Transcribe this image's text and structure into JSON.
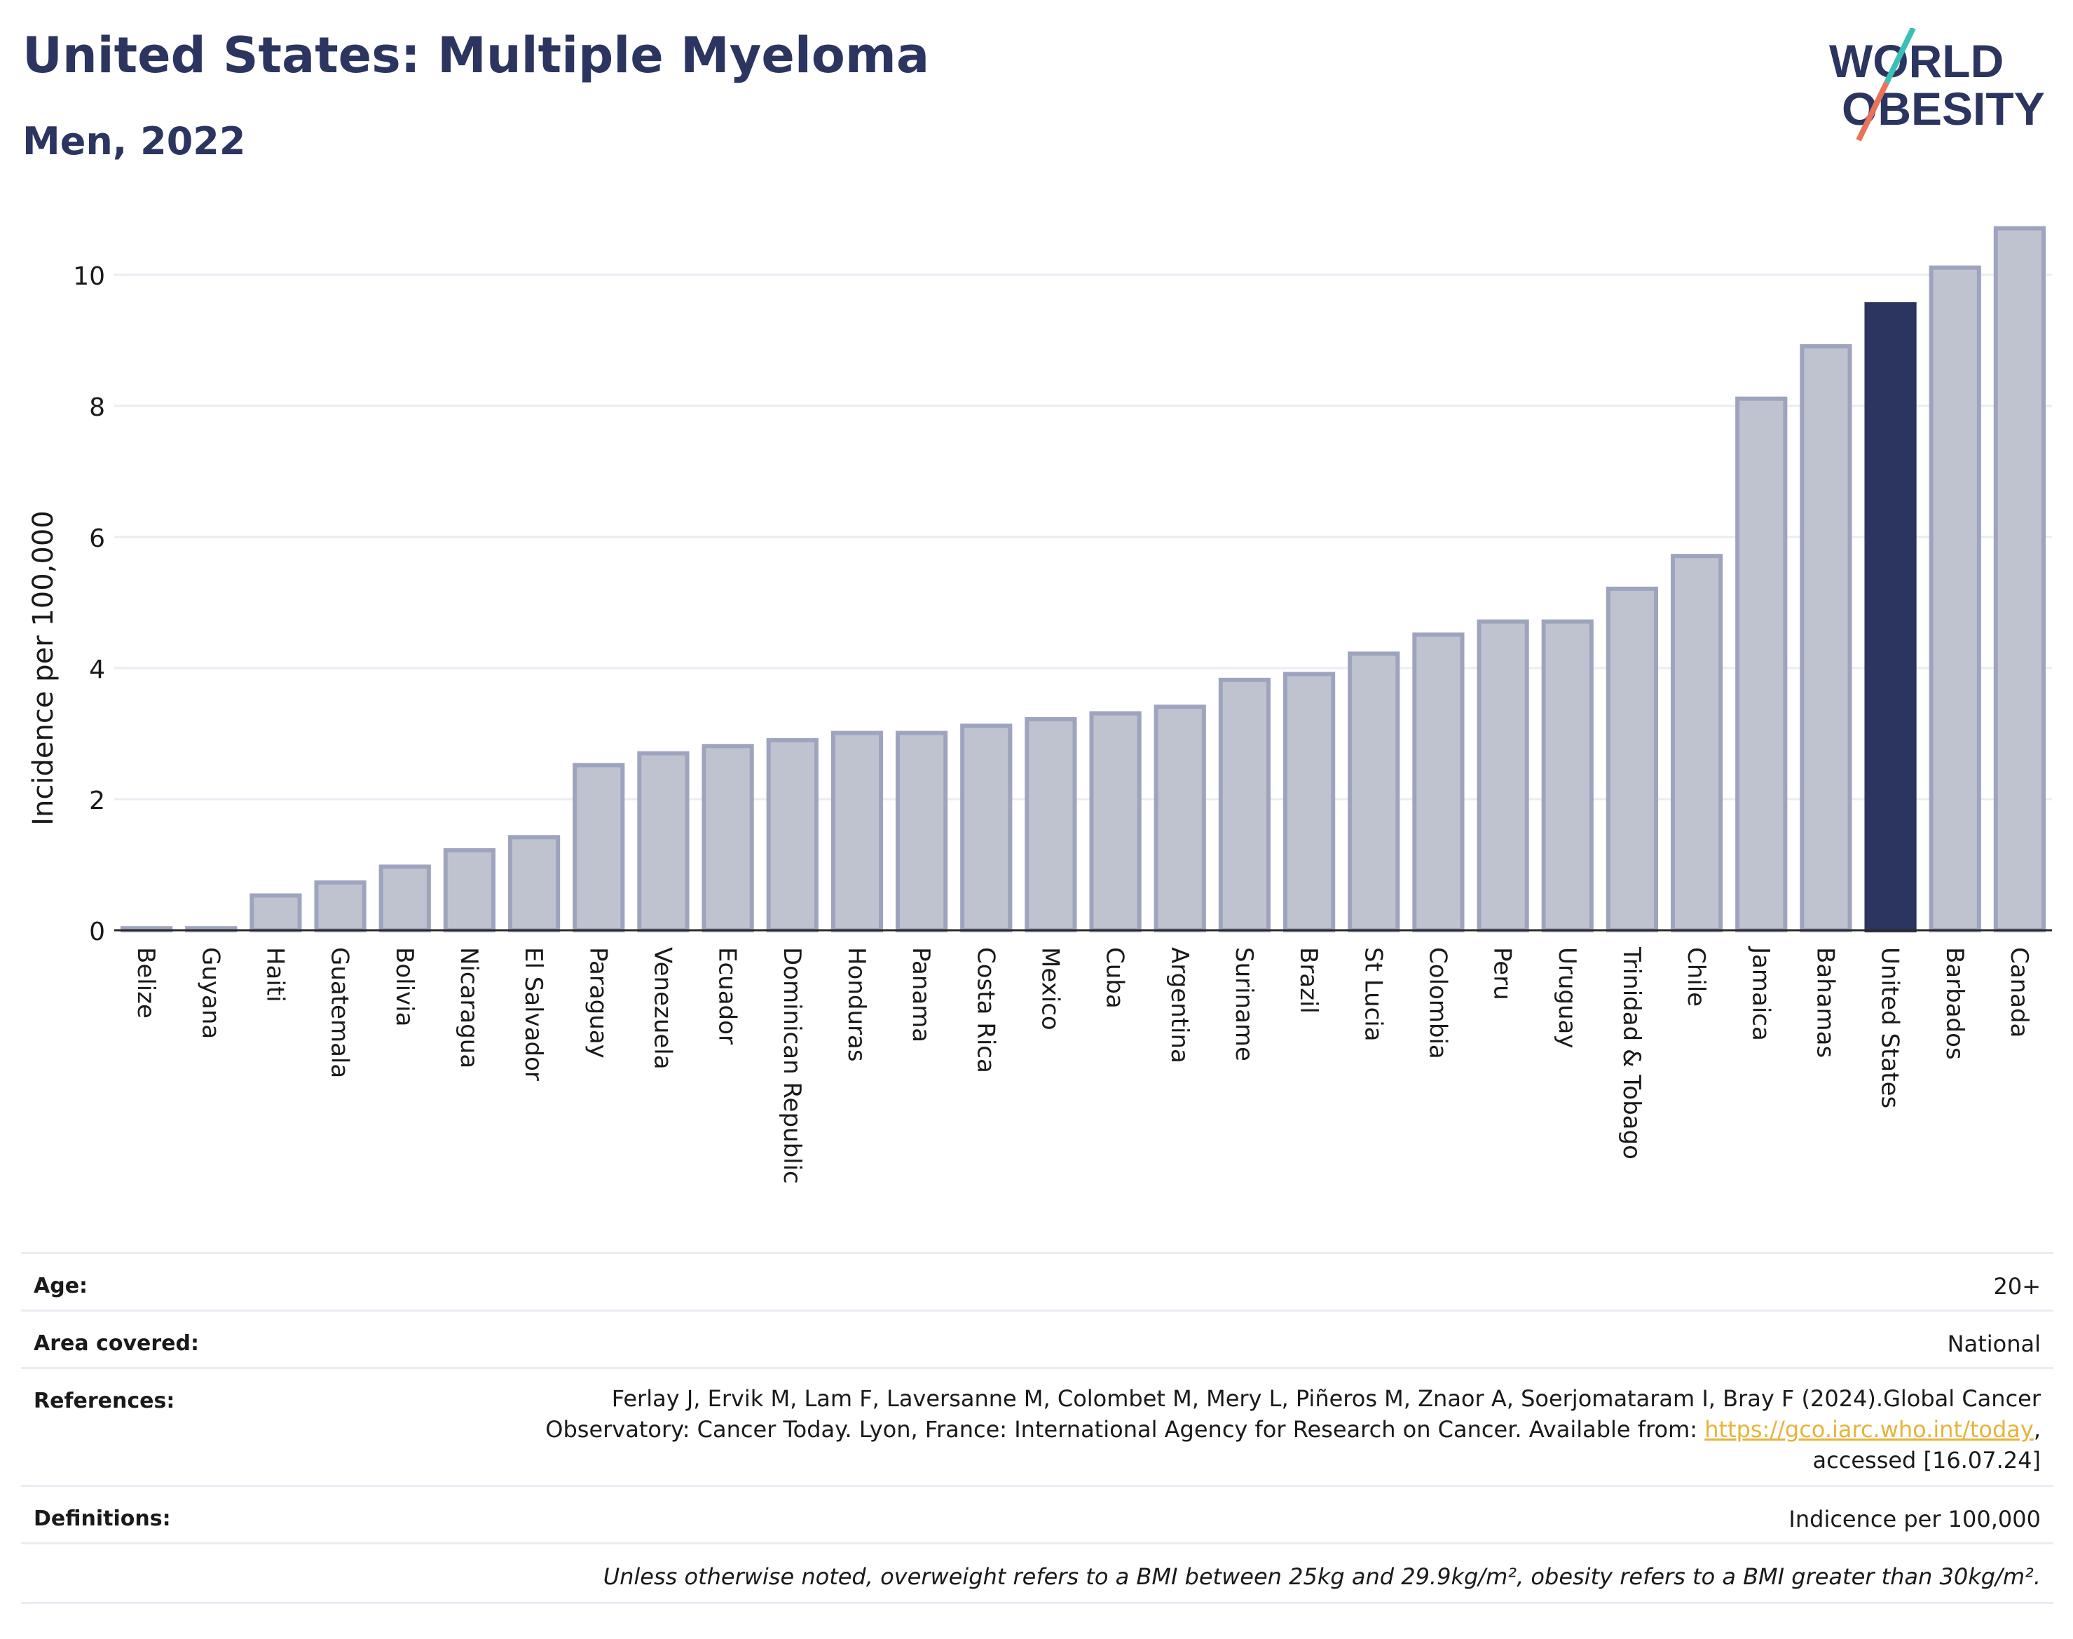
{
  "header": {
    "title": "United States: Multiple Myeloma",
    "subtitle": "Men, 2022",
    "logo_line1": "WORLD",
    "logo_line2": "OBESITY"
  },
  "colors": {
    "title": "#2b3560",
    "bar_default": "#bfc3d0",
    "bar_border": "#9ea4bd",
    "bar_highlight": "#2b3560",
    "grid": "#e9ecf3",
    "link": "#e6b43a",
    "logo_teal": "#3bbfb8",
    "logo_coral": "#e8735a"
  },
  "chart_data": {
    "type": "bar",
    "title": "United States: Multiple Myeloma",
    "subtitle": "Men, 2022",
    "xlabel": "",
    "ylabel": "Incidence per 100,000",
    "ylim": [
      0,
      11
    ],
    "yticks": [
      0,
      2,
      4,
      6,
      8,
      10
    ],
    "grid": true,
    "highlight": "United States",
    "categories": [
      "Belize",
      "Guyana",
      "Haiti",
      "Guatemala",
      "Bolivia",
      "Nicaragua",
      "El Salvador",
      "Paraguay",
      "Venezuela",
      "Ecuador",
      "Dominican Republic",
      "Honduras",
      "Panama",
      "Costa Rica",
      "Mexico",
      "Cuba",
      "Argentina",
      "Suriname",
      "Brazil",
      "St Lucia",
      "Colombia",
      "Peru",
      "Uruguay",
      "Trinidad & Tobago",
      "Chile",
      "Jamaica",
      "Bahamas",
      "United States",
      "Barbados",
      "Canada"
    ],
    "values": [
      0.03,
      0.03,
      0.53,
      0.73,
      0.97,
      1.22,
      1.42,
      2.52,
      2.7,
      2.81,
      2.9,
      3.01,
      3.01,
      3.12,
      3.22,
      3.31,
      3.41,
      3.82,
      3.91,
      4.22,
      4.51,
      4.71,
      4.71,
      5.21,
      5.71,
      8.11,
      8.91,
      9.55,
      10.11,
      10.71
    ]
  },
  "meta": {
    "age_label": "Age:",
    "age_value": "20+",
    "area_label": "Area covered:",
    "area_value": "National",
    "references_label": "References:",
    "references_line1": "Ferlay J, Ervik M, Lam F, Laversanne M, Colombet M, Mery L, Piñeros M, Znaor A, Soerjomataram I, Bray F (2024).Global Cancer",
    "references_line2_before": "Observatory: Cancer Today. Lyon, France: International Agency for Research on Cancer. Available from: ",
    "references_link": "https://gco.iarc.who.int/today",
    "references_line2_after": ",",
    "references_line3": "accessed [16.07.24]",
    "definitions_label": "Definitions:",
    "definitions_value": "Indicence per 100,000",
    "note": "Unless otherwise noted, overweight refers to a BMI between 25kg and 29.9kg/m², obesity refers to a BMI greater than 30kg/m²."
  }
}
